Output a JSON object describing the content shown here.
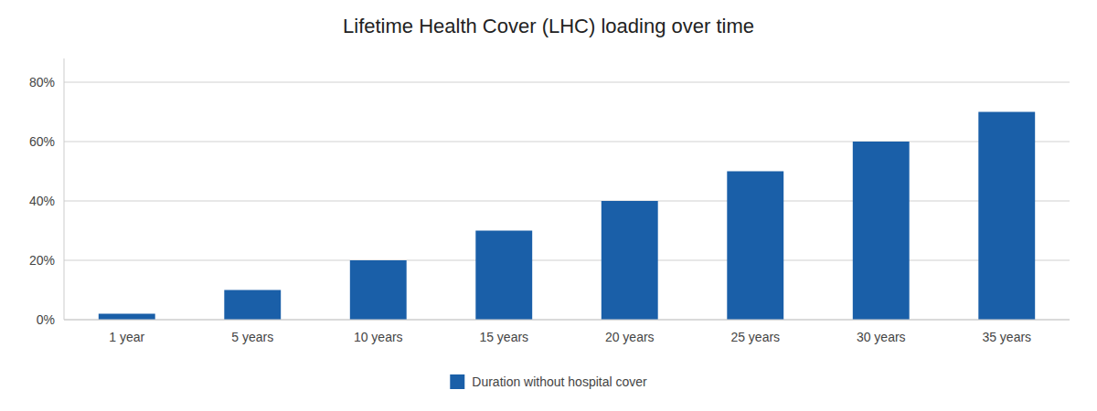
{
  "chart_data": {
    "type": "bar",
    "title": "Lifetime Health Cover (LHC) loading over time",
    "categories": [
      "1 year",
      "5 years",
      "10 years",
      "15 years",
      "20 years",
      "25 years",
      "30 years",
      "35 years"
    ],
    "series": [
      {
        "name": "Duration without hospital cover",
        "color": "#1a5fa8",
        "values": [
          2,
          10,
          20,
          30,
          40,
          50,
          60,
          70
        ]
      }
    ],
    "ylim": [
      0,
      88
    ],
    "yticks": [
      {
        "value": 0,
        "label": "0%"
      },
      {
        "value": 20,
        "label": "20%"
      },
      {
        "value": 40,
        "label": "40%"
      },
      {
        "value": 60,
        "label": "60%"
      },
      {
        "value": 80,
        "label": "80%"
      }
    ],
    "grid": true,
    "legend": "bottom"
  }
}
